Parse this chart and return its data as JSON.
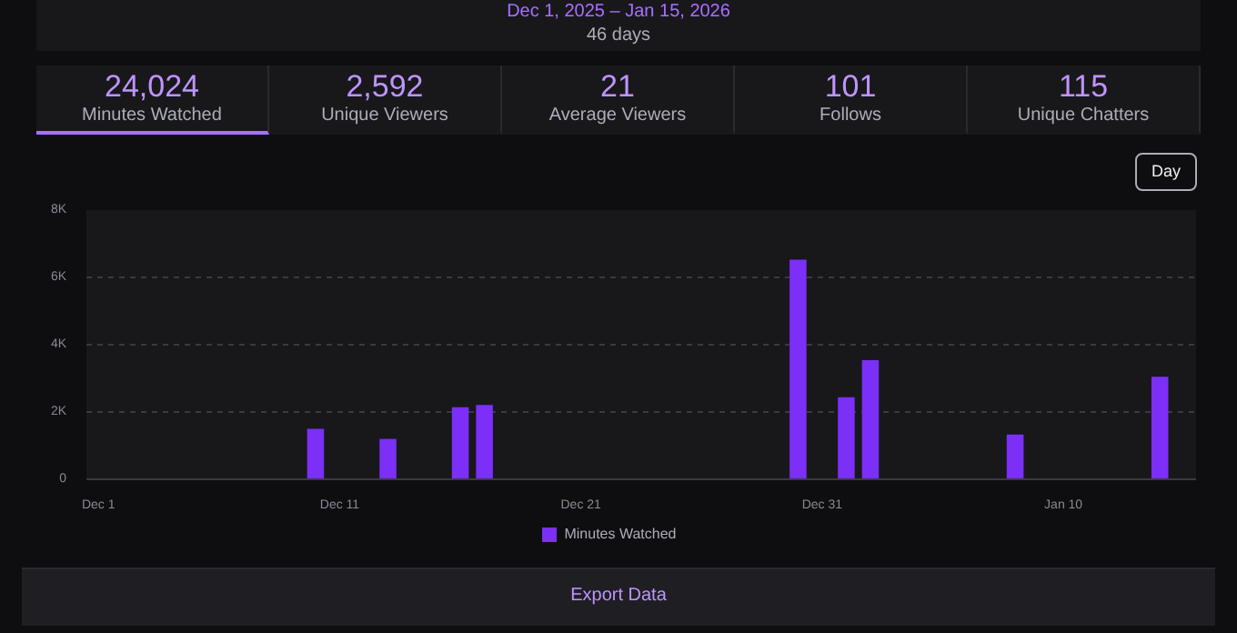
{
  "chart_data": {
    "type": "bar",
    "title": "Dec 1, 2025 – Jan 15, 2026",
    "subtitle": "46 days",
    "annotations": [
      "24,024",
      "Minutes Watched",
      "2,592",
      "Unique Viewers",
      "21",
      "Average Viewers",
      "101",
      "Follows",
      "115",
      "Unique Chatters",
      "Day",
      "Export Data"
    ],
    "x": [
      "2025-12-10",
      "2025-12-13",
      "2025-12-16",
      "2025-12-17",
      "2025-12-30",
      "2026-01-01",
      "2026-01-02",
      "2026-01-08",
      "2026-01-14"
    ],
    "series": [
      {
        "name": "Minutes Watched",
        "color": "#7b2ff7",
        "values": [
          1500,
          1200,
          2140,
          2210,
          6530,
          2440,
          3540,
          1330,
          3050
        ]
      }
    ],
    "xlim": [
      "2025-11-30T12:00",
      "2026-01-15T12:00"
    ],
    "xticks": [
      {
        "value": "2025-12-01",
        "label": "Dec 1"
      },
      {
        "value": "2025-12-11",
        "label": "Dec 11"
      },
      {
        "value": "2025-12-21",
        "label": "Dec 21"
      },
      {
        "value": "2025-12-31",
        "label": "Dec 31"
      },
      {
        "value": "2026-01-10",
        "label": "Jan 10"
      }
    ],
    "ylim": [
      0,
      8000
    ],
    "yticks": [
      {
        "value": 0,
        "label": "0"
      },
      {
        "value": 2000,
        "label": "2K"
      },
      {
        "value": 4000,
        "label": "4K"
      },
      {
        "value": 6000,
        "label": "6K"
      },
      {
        "value": 8000,
        "label": "8K"
      }
    ],
    "grid": "y",
    "legend": "bottom"
  }
}
